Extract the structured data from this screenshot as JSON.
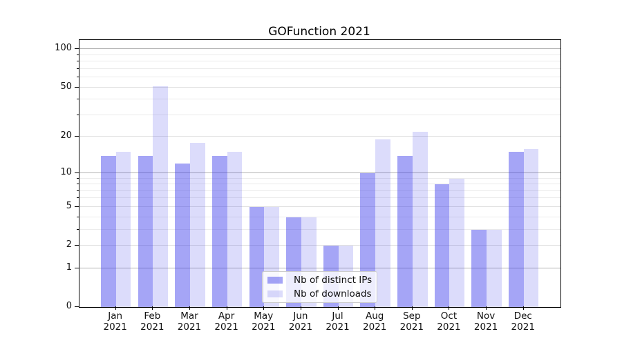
{
  "chart_data": {
    "type": "bar",
    "title": "GOFunction 2021",
    "categories": [
      {
        "month": "Jan",
        "year": "2021"
      },
      {
        "month": "Feb",
        "year": "2021"
      },
      {
        "month": "Mar",
        "year": "2021"
      },
      {
        "month": "Apr",
        "year": "2021"
      },
      {
        "month": "May",
        "year": "2021"
      },
      {
        "month": "Jun",
        "year": "2021"
      },
      {
        "month": "Jul",
        "year": "2021"
      },
      {
        "month": "Aug",
        "year": "2021"
      },
      {
        "month": "Sep",
        "year": "2021"
      },
      {
        "month": "Oct",
        "year": "2021"
      },
      {
        "month": "Nov",
        "year": "2021"
      },
      {
        "month": "Dec",
        "year": "2021"
      }
    ],
    "series": [
      {
        "name": "Nb of distinct IPs",
        "color": "rgba(55,55,235,0.45)",
        "values": [
          14,
          14,
          12,
          14,
          5,
          4,
          2,
          10,
          14,
          8,
          3,
          15
        ]
      },
      {
        "name": "Nb of downloads",
        "color": "rgba(55,55,235,0.175)",
        "values": [
          15,
          51,
          18,
          15,
          5,
          4,
          2,
          19,
          22,
          9,
          3,
          16
        ]
      }
    ],
    "yscale": "log1p",
    "ylim": [
      0,
      118
    ],
    "yticks": [
      0,
      1,
      2,
      5,
      10,
      20,
      50,
      100
    ],
    "major_gridlines": [
      1,
      10,
      100
    ],
    "labeled_minor_gridlines": [
      2,
      5,
      20,
      50
    ],
    "minor_gridlines": [
      3,
      4,
      6,
      7,
      8,
      9,
      30,
      40,
      60,
      70,
      80,
      90
    ],
    "grid": true,
    "xlabel": "",
    "ylabel": "",
    "legend_position": "lower center"
  },
  "colors": {
    "major_grid": "#b0b0b0",
    "labeled_grid": "#e0e0e0",
    "minor_grid": "#ebebeb",
    "spine": "#000000",
    "text": "#111111",
    "legend_border": "#cccccc",
    "legend_bg": "rgba(255,255,255,0.8)"
  }
}
